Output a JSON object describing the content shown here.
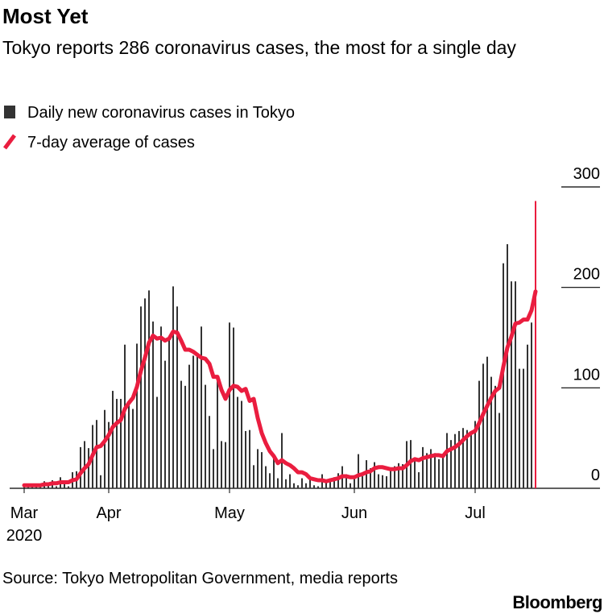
{
  "chart_data": {
    "type": "bar_line",
    "title": "Most Yet",
    "subtitle": "Tokyo reports 286 coronavirus cases, the most for a single day",
    "source": "Source: Tokyo Metropolitan Government, media reports",
    "logo": "Bloomberg",
    "year_label": "2020",
    "categories": [
      "Mar",
      null,
      null,
      null,
      null,
      null,
      null,
      null,
      null,
      null,
      null,
      null,
      null,
      null,
      null,
      null,
      null,
      null,
      null,
      null,
      null,
      "Apr",
      null,
      null,
      null,
      null,
      null,
      null,
      null,
      null,
      null,
      null,
      null,
      null,
      null,
      null,
      null,
      null,
      null,
      null,
      null,
      null,
      null,
      null,
      null,
      null,
      null,
      null,
      null,
      null,
      null,
      "May",
      null,
      null,
      null,
      null,
      null,
      null,
      null,
      null,
      null,
      null,
      null,
      null,
      null,
      null,
      null,
      null,
      null,
      null,
      null,
      null,
      null,
      null,
      null,
      null,
      null,
      null,
      null,
      null,
      null,
      null,
      "Jun",
      null,
      null,
      null,
      null,
      null,
      null,
      null,
      null,
      null,
      null,
      null,
      null,
      null,
      null,
      null,
      null,
      null,
      null,
      null,
      null,
      null,
      null,
      null,
      null,
      null,
      null,
      null,
      null,
      null,
      "Jul",
      null,
      null,
      null,
      null,
      null,
      null,
      null,
      null,
      null,
      null,
      null,
      null,
      null,
      null,
      null
    ],
    "series": [
      {
        "name": "Daily new coronavirus cases in Tokyo",
        "type": "bar",
        "color": "#333333",
        "last_color": "#ea1d3f",
        "values": [
          2,
          3,
          4,
          2,
          4,
          7,
          6,
          8,
          2,
          11,
          7,
          2,
          16,
          17,
          41,
          47,
          40,
          63,
          68,
          13,
          78,
          66,
          97,
          89,
          89,
          143,
          83,
          79,
          144,
          181,
          189,
          197,
          166,
          91,
          161,
          127,
          149,
          201,
          181,
          107,
          102,
          123,
          132,
          134,
          161,
          103,
          72,
          39,
          112,
          47,
          46,
          165,
          160,
          91,
          87,
          57,
          58,
          23,
          39,
          36,
          22,
          15,
          30,
          10,
          55,
          9,
          14,
          5,
          3,
          10,
          5,
          11,
          3,
          2,
          14,
          8,
          10,
          11,
          15,
          22,
          14,
          5,
          13,
          34,
          12,
          28,
          20,
          26,
          14,
          13,
          12,
          18,
          22,
          25,
          24,
          47,
          48,
          27,
          16,
          41,
          35,
          39,
          35,
          29,
          31,
          55,
          48,
          54,
          57,
          60,
          58,
          54,
          67,
          107,
          124,
          131,
          111,
          102,
          75,
          224,
          243,
          206,
          206,
          119,
          119,
          143,
          165,
          286
        ]
      },
      {
        "name": "7-day average of cases",
        "type": "line",
        "color": "#ea1d3f",
        "values": [
          3,
          3,
          3,
          3,
          3,
          4,
          4,
          5,
          5,
          6,
          6,
          6,
          8,
          9,
          15,
          20,
          24,
          33,
          41,
          42,
          47,
          53,
          61,
          65,
          68,
          79,
          85,
          90,
          101,
          117,
          130,
          145,
          152,
          149,
          150,
          147,
          149,
          156,
          155,
          147,
          138,
          138,
          136,
          133,
          130,
          129,
          124,
          111,
          111,
          98,
          89,
          98,
          102,
          101,
          97,
          99,
          87,
          89,
          70,
          55,
          45,
          37,
          32,
          25,
          28,
          25,
          23,
          20,
          16,
          16,
          14,
          10,
          9,
          8,
          8,
          7,
          8,
          9,
          10,
          12,
          12,
          11,
          11,
          13,
          14,
          16,
          17,
          20,
          21,
          21,
          20,
          19,
          19,
          20,
          20,
          23,
          27,
          29,
          28,
          30,
          31,
          32,
          33,
          33,
          32,
          37,
          39,
          41,
          44,
          48,
          52,
          55,
          57,
          65,
          74,
          82,
          90,
          97,
          100,
          121,
          140,
          151,
          164,
          165,
          168,
          168,
          177,
          196
        ]
      }
    ],
    "ylim": [
      0,
      300
    ],
    "yticks": [
      0,
      100,
      200,
      300
    ],
    "grid": false
  }
}
